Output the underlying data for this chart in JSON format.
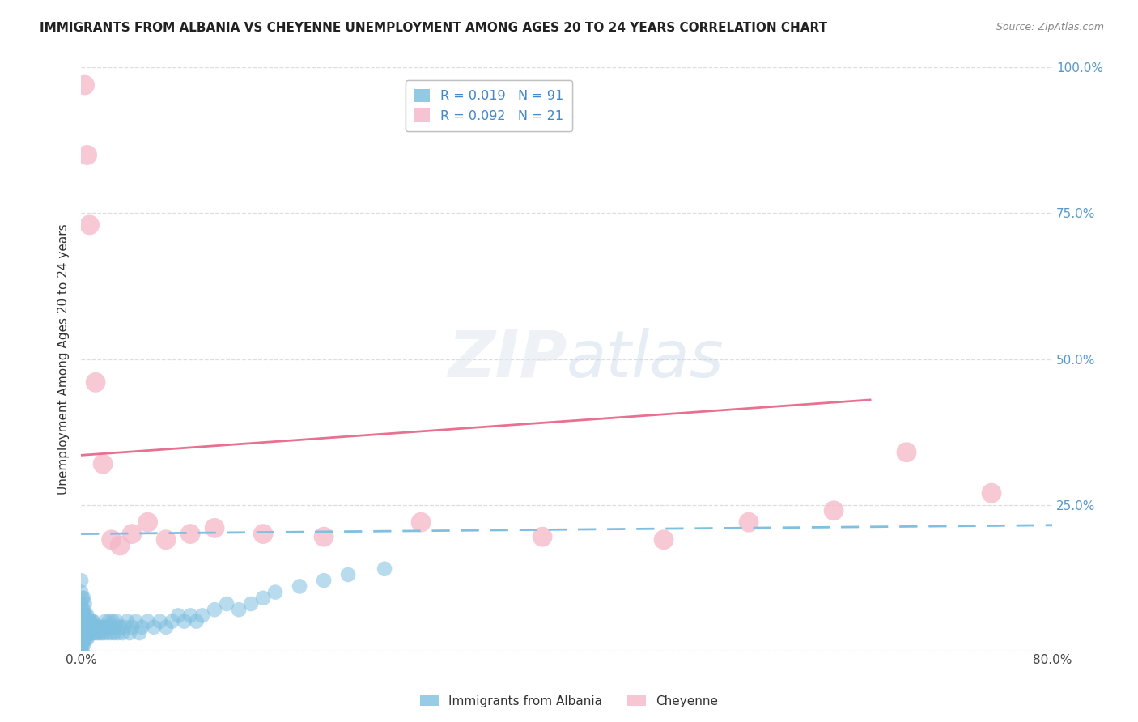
{
  "title": "IMMIGRANTS FROM ALBANIA VS CHEYENNE UNEMPLOYMENT AMONG AGES 20 TO 24 YEARS CORRELATION CHART",
  "source": "Source: ZipAtlas.com",
  "ylabel": "Unemployment Among Ages 20 to 24 years",
  "xlim": [
    0.0,
    0.8
  ],
  "ylim": [
    0.0,
    1.0
  ],
  "xtick_positions": [
    0.0,
    0.8
  ],
  "xticklabels": [
    "0.0%",
    "80.0%"
  ],
  "ytick_positions": [
    0.0,
    0.25,
    0.5,
    0.75,
    1.0
  ],
  "yticklabels": [
    "",
    "25.0%",
    "50.0%",
    "75.0%",
    "100.0%"
  ],
  "blue_color": "#7fbfdf",
  "pink_color": "#f4b8c8",
  "blue_line_color": "#7fbfdf",
  "pink_line_color": "#e87090",
  "grid_color": "#dddddd",
  "tick_color": "#5599cc",
  "bg_color": "#ffffff",
  "title_fontsize": 11,
  "axis_label_fontsize": 11,
  "tick_fontsize": 11,
  "watermark": "ZIPatlas",
  "pink_line_x": [
    0.0,
    0.65
  ],
  "pink_line_y": [
    0.335,
    0.43
  ],
  "blue_line_x": [
    0.0,
    0.8
  ],
  "blue_line_y": [
    0.2,
    0.215
  ],
  "blue_scatter_x": [
    0.0,
    0.0,
    0.0,
    0.0,
    0.0,
    0.0,
    0.0,
    0.0,
    0.0,
    0.0,
    0.001,
    0.001,
    0.001,
    0.001,
    0.001,
    0.001,
    0.001,
    0.002,
    0.002,
    0.002,
    0.002,
    0.002,
    0.003,
    0.003,
    0.003,
    0.003,
    0.004,
    0.004,
    0.004,
    0.005,
    0.005,
    0.005,
    0.006,
    0.006,
    0.007,
    0.007,
    0.008,
    0.008,
    0.009,
    0.009,
    0.01,
    0.01,
    0.011,
    0.012,
    0.013,
    0.014,
    0.015,
    0.016,
    0.017,
    0.018,
    0.019,
    0.02,
    0.021,
    0.022,
    0.023,
    0.024,
    0.025,
    0.026,
    0.027,
    0.028,
    0.029,
    0.03,
    0.032,
    0.034,
    0.036,
    0.038,
    0.04,
    0.042,
    0.045,
    0.048,
    0.05,
    0.055,
    0.06,
    0.065,
    0.07,
    0.075,
    0.08,
    0.085,
    0.09,
    0.095,
    0.1,
    0.11,
    0.12,
    0.13,
    0.14,
    0.15,
    0.16,
    0.18,
    0.2,
    0.22,
    0.25
  ],
  "blue_scatter_y": [
    0.0,
    0.01,
    0.02,
    0.03,
    0.04,
    0.05,
    0.06,
    0.08,
    0.1,
    0.12,
    0.0,
    0.01,
    0.02,
    0.03,
    0.05,
    0.07,
    0.09,
    0.01,
    0.03,
    0.05,
    0.07,
    0.09,
    0.02,
    0.04,
    0.06,
    0.08,
    0.02,
    0.04,
    0.06,
    0.02,
    0.04,
    0.06,
    0.03,
    0.05,
    0.03,
    0.05,
    0.03,
    0.05,
    0.03,
    0.05,
    0.03,
    0.05,
    0.04,
    0.03,
    0.04,
    0.03,
    0.04,
    0.03,
    0.04,
    0.03,
    0.04,
    0.05,
    0.03,
    0.04,
    0.05,
    0.03,
    0.04,
    0.05,
    0.03,
    0.04,
    0.05,
    0.03,
    0.04,
    0.03,
    0.04,
    0.05,
    0.03,
    0.04,
    0.05,
    0.03,
    0.04,
    0.05,
    0.04,
    0.05,
    0.04,
    0.05,
    0.06,
    0.05,
    0.06,
    0.05,
    0.06,
    0.07,
    0.08,
    0.07,
    0.08,
    0.09,
    0.1,
    0.11,
    0.12,
    0.13,
    0.14
  ],
  "pink_scatter_x": [
    0.003,
    0.005,
    0.007,
    0.012,
    0.018,
    0.025,
    0.032,
    0.042,
    0.055,
    0.07,
    0.09,
    0.11,
    0.15,
    0.2,
    0.28,
    0.38,
    0.48,
    0.55,
    0.62,
    0.68,
    0.75
  ],
  "pink_scatter_y": [
    0.97,
    0.85,
    0.73,
    0.46,
    0.32,
    0.19,
    0.18,
    0.2,
    0.22,
    0.19,
    0.2,
    0.21,
    0.2,
    0.195,
    0.22,
    0.195,
    0.19,
    0.22,
    0.24,
    0.34,
    0.27
  ]
}
